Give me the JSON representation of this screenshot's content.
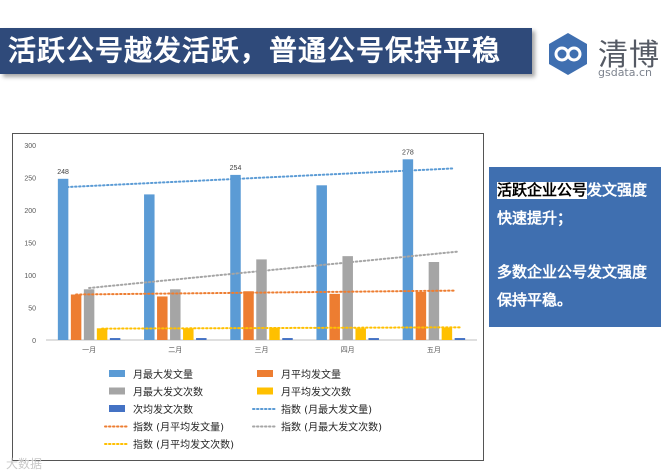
{
  "header": {
    "title": "活跃公号越发活跃，普通公号保持平稳",
    "logo_name": "清博",
    "logo_sub": "gsdata.cn"
  },
  "side_panel": {
    "p1_highlight": "活跃企业公号",
    "p1_rest": "发文强度快速提升；",
    "p2": "多数企业公号发文强度保持平稳。"
  },
  "watermark": "大数据",
  "colors": {
    "banner": "#2f4a7a",
    "panel": "#3f6fb0",
    "s1": "#5b9bd5",
    "s2": "#ed7d31",
    "s3": "#a5a5a5",
    "s4": "#ffc000",
    "s5": "#4472c4"
  },
  "chart_data": {
    "type": "bar",
    "categories": [
      "一月",
      "二月",
      "三月",
      "四月",
      "五月"
    ],
    "ylim": [
      0,
      300
    ],
    "yticks": [
      "0",
      "50",
      "100",
      "150",
      "200",
      "250",
      "300"
    ],
    "series": [
      {
        "name": "月最大发文量",
        "values": [
          248,
          224,
          254,
          238,
          278
        ]
      },
      {
        "name": "月平均发文量",
        "values": [
          70,
          67,
          75,
          71,
          74
        ]
      },
      {
        "name": "月最大发文次数",
        "values": [
          78,
          78,
          124,
          129,
          120
        ]
      },
      {
        "name": "月平均发文次数",
        "values": [
          18,
          18,
          19,
          18,
          19
        ]
      },
      {
        "name": "次均发文次数",
        "values": [
          3,
          3,
          3,
          3,
          3
        ]
      }
    ],
    "data_labels": [
      {
        "category": "一月",
        "text": "248"
      },
      {
        "category": "三月",
        "text": "254"
      },
      {
        "category": "五月",
        "text": "278"
      }
    ],
    "trendlines": [
      {
        "name": "指数 (月最大发文量)",
        "start": 235,
        "end": 264
      },
      {
        "name": "指数 (月平均发文量)",
        "start": 70,
        "end": 76
      },
      {
        "name": "指数 (月最大发文次数)",
        "start": 80,
        "end": 136
      },
      {
        "name": "指数 (月平均发文次数)",
        "start": 17.5,
        "end": 19.5
      }
    ],
    "legend_position": "bottom",
    "grid": false
  }
}
